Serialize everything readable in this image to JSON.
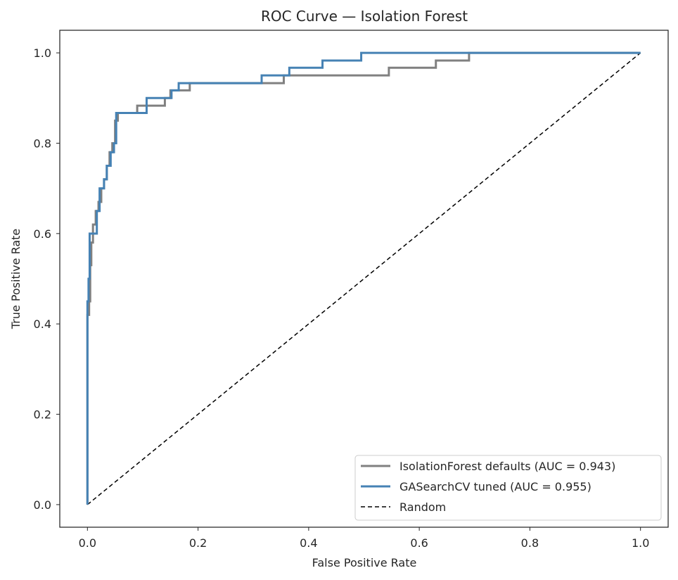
{
  "chart_data": {
    "type": "line",
    "title": "ROC Curve — Isolation Forest",
    "xlabel": "False Positive Rate",
    "ylabel": "True Positive Rate",
    "xlim": [
      -0.05,
      1.05
    ],
    "ylim": [
      -0.05,
      1.05
    ],
    "xticks": [
      "0.0",
      "0.2",
      "0.4",
      "0.6",
      "0.8",
      "1.0"
    ],
    "yticks": [
      "0.0",
      "0.2",
      "0.4",
      "0.6",
      "0.8",
      "1.0"
    ],
    "grid": false,
    "legend_position": "bottom-right",
    "series": [
      {
        "name": "IsolationForest defaults (AUC = 0.943)",
        "color": "#808080",
        "style": "solid",
        "x": [
          0.0,
          0.0,
          0.003,
          0.003,
          0.005,
          0.005,
          0.007,
          0.007,
          0.01,
          0.01,
          0.015,
          0.015,
          0.02,
          0.02,
          0.025,
          0.025,
          0.03,
          0.03,
          0.035,
          0.035,
          0.04,
          0.04,
          0.045,
          0.045,
          0.05,
          0.05,
          0.055,
          0.055,
          0.09,
          0.09,
          0.14,
          0.14,
          0.15,
          0.15,
          0.185,
          0.185,
          0.355,
          0.355,
          0.545,
          0.545,
          0.63,
          0.63,
          0.69,
          0.69,
          1.0
        ],
        "y": [
          0.0,
          0.42,
          0.42,
          0.45,
          0.45,
          0.53,
          0.53,
          0.58,
          0.58,
          0.62,
          0.62,
          0.65,
          0.65,
          0.67,
          0.67,
          0.7,
          0.7,
          0.72,
          0.72,
          0.75,
          0.75,
          0.78,
          0.78,
          0.8,
          0.8,
          0.85,
          0.85,
          0.867,
          0.867,
          0.883,
          0.883,
          0.9,
          0.9,
          0.917,
          0.917,
          0.933,
          0.933,
          0.95,
          0.95,
          0.967,
          0.967,
          0.983,
          0.983,
          1.0,
          1.0
        ]
      },
      {
        "name": "GASearchCV tuned (AUC = 0.955)",
        "color": "#4682b4",
        "style": "solid",
        "x": [
          0.0,
          0.0,
          0.002,
          0.002,
          0.004,
          0.004,
          0.017,
          0.017,
          0.022,
          0.022,
          0.03,
          0.03,
          0.035,
          0.035,
          0.042,
          0.042,
          0.048,
          0.048,
          0.052,
          0.052,
          0.107,
          0.107,
          0.152,
          0.152,
          0.165,
          0.165,
          0.315,
          0.315,
          0.365,
          0.365,
          0.425,
          0.425,
          0.495,
          0.495,
          1.0
        ],
        "y": [
          0.0,
          0.45,
          0.45,
          0.5,
          0.5,
          0.6,
          0.6,
          0.65,
          0.65,
          0.7,
          0.7,
          0.72,
          0.72,
          0.75,
          0.75,
          0.78,
          0.78,
          0.8,
          0.8,
          0.867,
          0.867,
          0.9,
          0.9,
          0.917,
          0.917,
          0.933,
          0.933,
          0.95,
          0.95,
          0.967,
          0.967,
          0.983,
          0.983,
          1.0,
          1.0
        ]
      },
      {
        "name": "Random",
        "color": "#000000",
        "style": "dashed",
        "x": [
          0.0,
          1.0
        ],
        "y": [
          0.0,
          1.0
        ]
      }
    ]
  }
}
